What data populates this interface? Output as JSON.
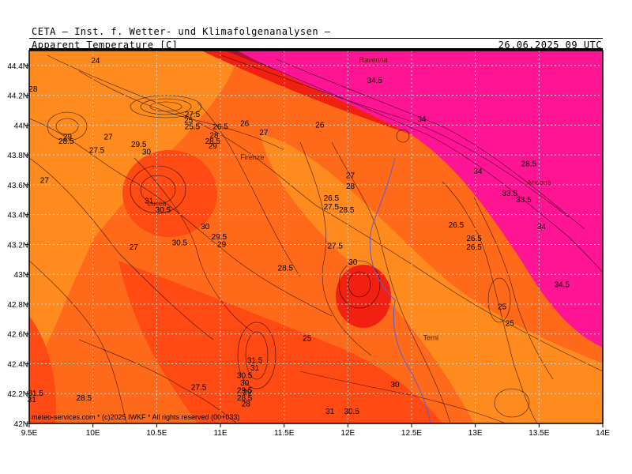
{
  "header": {
    "provider": "CETA — Inst. f. Wetter- und Klimafolgenanalysen —",
    "parameter": "Apparent Temperature [C]",
    "valid_time": "26.06.2025 09 UTC"
  },
  "footer": {
    "credit": "meteo-services.com * (c)2025 IWKF * All rights reserved (00+033)"
  },
  "colors": {
    "frame": "#000000",
    "grid": "#d9d9d9",
    "river": "#6a5acd",
    "levels": [
      "#ff8a1e",
      "#ff6a1a",
      "#ff4a14",
      "#f22010",
      "#b0103a",
      "#ff1493"
    ]
  },
  "chart_data": {
    "type": "heatmap",
    "x": {
      "range": [
        9.5,
        14.0
      ],
      "ticks": [
        9.5,
        10.0,
        10.5,
        11.0,
        11.5,
        12.0,
        12.5,
        13.0,
        13.5,
        14.0
      ],
      "tick_labels": [
        "9.5E",
        "10E",
        "10.5E",
        "11E",
        "11.5E",
        "12E",
        "12.5E",
        "13E",
        "13.5E",
        "14E"
      ]
    },
    "y": {
      "range": [
        42.0,
        44.5
      ],
      "ticks": [
        42.0,
        42.2,
        42.4,
        42.6,
        42.8,
        43.0,
        43.2,
        43.4,
        43.6,
        43.8,
        44.0,
        44.2,
        44.4
      ],
      "tick_labels": [
        "42N",
        "42.2N",
        "42.4N",
        "42.6N",
        "42.8N",
        "43N",
        "43.2N",
        "43.4N",
        "43.6N",
        "43.8N",
        "44N",
        "44.2N",
        "44.4N"
      ]
    },
    "grid": true,
    "cities": [
      {
        "name": "Ravenna",
        "lon": 12.2,
        "lat": 44.42
      },
      {
        "name": "Firenze",
        "lon": 11.25,
        "lat": 43.77
      },
      {
        "name": "Ancona",
        "lon": 13.5,
        "lat": 43.6
      },
      {
        "name": "Terni",
        "lon": 12.65,
        "lat": 42.56
      },
      {
        "name": "Lucca",
        "lon": 10.5,
        "lat": 43.46
      }
    ],
    "contour_labels": [
      {
        "text": "24",
        "lon": 10.02,
        "lat": 44.43
      },
      {
        "text": "28",
        "lon": 9.53,
        "lat": 44.24
      },
      {
        "text": "27.5",
        "lon": 10.78,
        "lat": 44.07
      },
      {
        "text": "25",
        "lon": 10.75,
        "lat": 44.03
      },
      {
        "text": "25.5",
        "lon": 10.78,
        "lat": 43.99
      },
      {
        "text": "26.5",
        "lon": 11.0,
        "lat": 43.99
      },
      {
        "text": "26",
        "lon": 11.19,
        "lat": 44.01
      },
      {
        "text": "27",
        "lon": 11.34,
        "lat": 43.95
      },
      {
        "text": "26",
        "lon": 11.78,
        "lat": 44.0
      },
      {
        "text": "28",
        "lon": 10.95,
        "lat": 43.93
      },
      {
        "text": "28.5",
        "lon": 10.94,
        "lat": 43.89
      },
      {
        "text": "29",
        "lon": 10.94,
        "lat": 43.86
      },
      {
        "text": "29",
        "lon": 9.8,
        "lat": 43.92
      },
      {
        "text": "28.5",
        "lon": 9.79,
        "lat": 43.89
      },
      {
        "text": "27",
        "lon": 10.12,
        "lat": 43.92
      },
      {
        "text": "27.5",
        "lon": 10.03,
        "lat": 43.83
      },
      {
        "text": "29.5",
        "lon": 10.36,
        "lat": 43.87
      },
      {
        "text": "30",
        "lon": 10.42,
        "lat": 43.82
      },
      {
        "text": "27",
        "lon": 9.62,
        "lat": 43.63
      },
      {
        "text": "31",
        "lon": 10.44,
        "lat": 43.49
      },
      {
        "text": "30.5",
        "lon": 10.55,
        "lat": 43.43
      },
      {
        "text": "30",
        "lon": 10.88,
        "lat": 43.32
      },
      {
        "text": "30.5",
        "lon": 10.68,
        "lat": 43.21
      },
      {
        "text": "29.5",
        "lon": 10.99,
        "lat": 43.25
      },
      {
        "text": "29",
        "lon": 11.01,
        "lat": 43.2
      },
      {
        "text": "27",
        "lon": 10.32,
        "lat": 43.18
      },
      {
        "text": "26.5",
        "lon": 11.87,
        "lat": 43.51
      },
      {
        "text": "27.5",
        "lon": 11.87,
        "lat": 43.45
      },
      {
        "text": "27",
        "lon": 12.02,
        "lat": 43.66
      },
      {
        "text": "28",
        "lon": 12.02,
        "lat": 43.59
      },
      {
        "text": "28.5",
        "lon": 11.99,
        "lat": 43.43
      },
      {
        "text": "27.5",
        "lon": 11.9,
        "lat": 43.19
      },
      {
        "text": "28.5",
        "lon": 11.51,
        "lat": 43.04
      },
      {
        "text": "30",
        "lon": 12.04,
        "lat": 43.08
      },
      {
        "text": "26.5",
        "lon": 12.85,
        "lat": 43.33
      },
      {
        "text": "26.5",
        "lon": 12.99,
        "lat": 43.24
      },
      {
        "text": "26.5",
        "lon": 12.99,
        "lat": 43.18
      },
      {
        "text": "25",
        "lon": 13.21,
        "lat": 42.78
      },
      {
        "text": "25",
        "lon": 13.27,
        "lat": 42.67
      },
      {
        "text": "25",
        "lon": 11.68,
        "lat": 42.57
      },
      {
        "text": "34.5",
        "lon": 12.21,
        "lat": 44.3
      },
      {
        "text": "34",
        "lon": 12.58,
        "lat": 44.04
      },
      {
        "text": "34",
        "lon": 13.02,
        "lat": 43.69
      },
      {
        "text": "28.5",
        "lon": 13.42,
        "lat": 43.74
      },
      {
        "text": "33.5",
        "lon": 13.27,
        "lat": 43.54
      },
      {
        "text": "33.5",
        "lon": 13.38,
        "lat": 43.5
      },
      {
        "text": "34",
        "lon": 13.52,
        "lat": 43.32
      },
      {
        "text": "34.5",
        "lon": 13.68,
        "lat": 42.93
      },
      {
        "text": "31.5",
        "lon": 11.27,
        "lat": 42.42
      },
      {
        "text": "31",
        "lon": 11.27,
        "lat": 42.37
      },
      {
        "text": "30.5",
        "lon": 11.19,
        "lat": 42.32
      },
      {
        "text": "30",
        "lon": 11.19,
        "lat": 42.27
      },
      {
        "text": "29.5",
        "lon": 11.19,
        "lat": 42.22
      },
      {
        "text": "29",
        "lon": 11.21,
        "lat": 42.21
      },
      {
        "text": "28.5",
        "lon": 11.19,
        "lat": 42.17
      },
      {
        "text": "28",
        "lon": 11.2,
        "lat": 42.13
      },
      {
        "text": "27.5",
        "lon": 10.83,
        "lat": 42.24
      },
      {
        "text": "28.5",
        "lon": 9.93,
        "lat": 42.17
      },
      {
        "text": "30",
        "lon": 12.37,
        "lat": 42.26
      },
      {
        "text": "31",
        "lon": 11.86,
        "lat": 42.08
      },
      {
        "text": "30.5",
        "lon": 12.03,
        "lat": 42.08
      },
      {
        "text": "31.5",
        "lon": 9.55,
        "lat": 42.2
      },
      {
        "text": "31",
        "lon": 9.52,
        "lat": 42.16
      }
    ]
  }
}
